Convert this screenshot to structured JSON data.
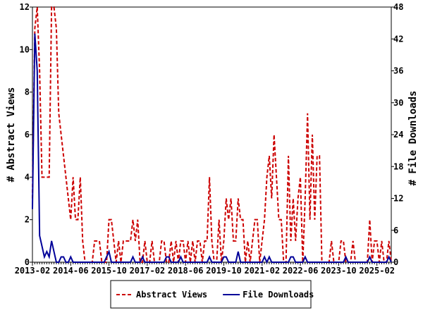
{
  "chart_data": {
    "type": "line",
    "categories": [
      "2013-02",
      null,
      null,
      null,
      null,
      null,
      null,
      null,
      null,
      null,
      null,
      null,
      null,
      null,
      null,
      null,
      "2014-06",
      null,
      null,
      null,
      null,
      null,
      null,
      null,
      null,
      null,
      null,
      null,
      null,
      null,
      null,
      null,
      "2015-10",
      null,
      null,
      null,
      null,
      null,
      null,
      null,
      null,
      null,
      null,
      null,
      null,
      null,
      null,
      null,
      "2017-02",
      null,
      null,
      null,
      null,
      null,
      null,
      null,
      null,
      null,
      null,
      null,
      null,
      null,
      null,
      null,
      "2018-06",
      null,
      null,
      null,
      null,
      null,
      null,
      null,
      null,
      null,
      null,
      null,
      null,
      null,
      null,
      null,
      "2019-10",
      null,
      null,
      null,
      null,
      null,
      null,
      null,
      null,
      null,
      null,
      null,
      null,
      null,
      null,
      null,
      "2021-02",
      null,
      null,
      null,
      null,
      null,
      null,
      null,
      null,
      null,
      null,
      null,
      null,
      null,
      null,
      null,
      "2022-06",
      null,
      null,
      null,
      null,
      null,
      null,
      null,
      null,
      null,
      null,
      null,
      null,
      null,
      null,
      null,
      "2023-10",
      null,
      null,
      null,
      null,
      null,
      null,
      null,
      null,
      null,
      null,
      null,
      null,
      null,
      null,
      null,
      "2025-02",
      null,
      null,
      null,
      null,
      null,
      null
    ],
    "series": [
      {
        "name": "Abstract Views",
        "color": "#cc0000",
        "dash": true,
        "values": [
          3,
          11,
          12,
          9,
          4,
          4,
          4,
          4,
          12,
          12,
          11,
          7,
          6,
          5,
          4,
          3,
          2,
          4,
          2,
          2,
          4,
          1,
          0,
          0,
          0,
          0,
          1,
          1,
          1,
          0,
          0,
          0,
          2,
          2,
          1,
          0,
          1,
          0,
          1,
          1,
          1,
          1,
          2,
          1,
          2,
          0,
          0,
          1,
          0,
          0,
          1,
          0,
          0,
          0,
          1,
          1,
          0,
          0,
          1,
          0,
          1,
          0,
          1,
          1,
          0,
          1,
          0,
          1,
          0,
          1,
          1,
          0,
          1,
          1,
          4,
          1,
          0,
          0,
          2,
          0,
          1,
          3,
          2,
          3,
          1,
          1,
          3,
          2,
          2,
          0,
          1,
          0,
          1,
          2,
          2,
          0,
          1,
          2,
          4,
          5,
          3,
          6,
          4,
          2,
          2,
          0,
          0,
          5,
          1,
          3,
          1,
          3,
          4,
          0,
          3,
          7,
          2,
          6,
          2,
          5,
          5,
          0,
          0,
          0,
          0,
          1,
          0,
          0,
          0,
          1,
          1,
          0,
          0,
          0,
          1,
          0,
          0,
          0,
          0,
          0,
          0,
          2,
          0,
          1,
          1,
          0,
          1,
          0,
          0,
          1,
          0
        ]
      },
      {
        "name": "File Downloads",
        "color": "#000099",
        "dash": false,
        "axis": "y2",
        "values": [
          10,
          43,
          36,
          5,
          3,
          1,
          2,
          1,
          4,
          2,
          0,
          0,
          1,
          1,
          0,
          0,
          1,
          0,
          0,
          0,
          0,
          0,
          0,
          0,
          0,
          0,
          0,
          0,
          0,
          0,
          0,
          1,
          2,
          0,
          0,
          0,
          0,
          0,
          0,
          0,
          0,
          0,
          1,
          0,
          0,
          0,
          1,
          0,
          0,
          0,
          0,
          0,
          0,
          0,
          0,
          0,
          1,
          1,
          0,
          0,
          0,
          0,
          1,
          0,
          0,
          0,
          0,
          0,
          0,
          0,
          0,
          0,
          0,
          0,
          1,
          0,
          0,
          0,
          0,
          0,
          1,
          1,
          0,
          0,
          0,
          0,
          2,
          0,
          0,
          0,
          0,
          0,
          0,
          0,
          0,
          0,
          0,
          1,
          0,
          1,
          0,
          0,
          0,
          0,
          0,
          0,
          0,
          0,
          1,
          1,
          0,
          0,
          0,
          0,
          1,
          0,
          0,
          0,
          0,
          0,
          0,
          0,
          0,
          0,
          0,
          0,
          0,
          0,
          0,
          0,
          0,
          1,
          0,
          0,
          0,
          0,
          0,
          0,
          0,
          0,
          0,
          1,
          0,
          0,
          0,
          0,
          0,
          0,
          0,
          1,
          0
        ]
      }
    ],
    "y_label": "# Abstract Views",
    "y2_label": "# File Downloads",
    "ylim": [
      0,
      12
    ],
    "yticks": [
      0,
      2,
      4,
      6,
      8,
      10,
      12
    ],
    "y2lim": [
      0,
      48
    ],
    "y2ticks": [
      0,
      6,
      12,
      18,
      24,
      30,
      36,
      42,
      48
    ],
    "legend": "bottom"
  }
}
